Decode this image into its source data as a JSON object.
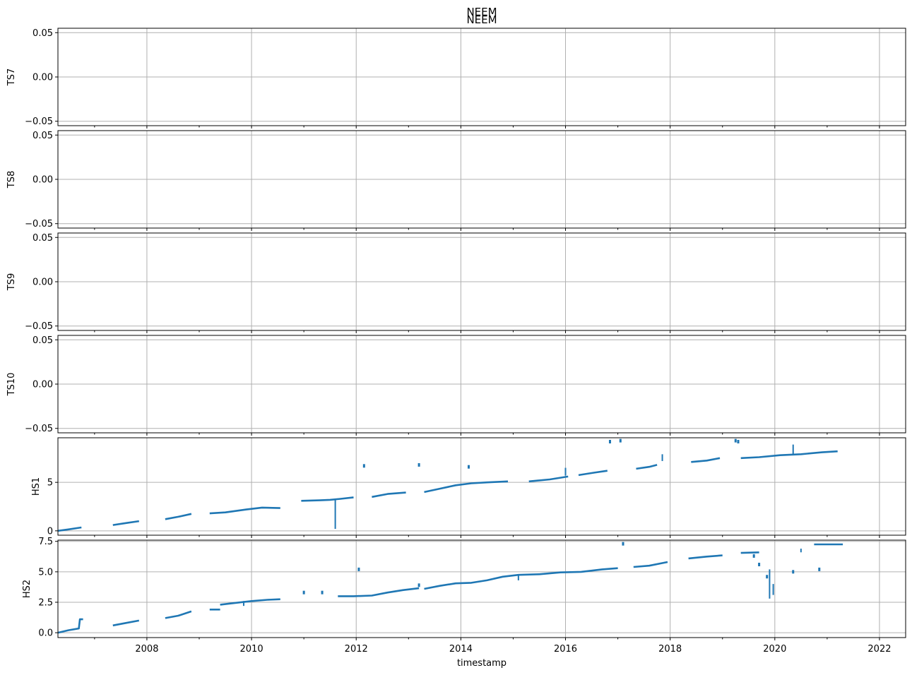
{
  "figure": {
    "titles": [
      "NEEM",
      "NEEM"
    ],
    "xlabel": "timestamp",
    "x_ticks": [
      "2008",
      "2010",
      "2012",
      "2014",
      "2016",
      "2018",
      "2020",
      "2022"
    ]
  },
  "chart_data": [
    {
      "type": "line",
      "ylabel": "TS7",
      "ylim": [
        -0.055,
        0.055
      ],
      "yticks": [
        -0.05,
        0.0,
        0.05
      ],
      "ytick_labels": [
        "−0.05",
        "0.00",
        "0.05"
      ],
      "grid": true,
      "series": []
    },
    {
      "type": "line",
      "ylabel": "TS8",
      "ylim": [
        -0.055,
        0.055
      ],
      "yticks": [
        -0.05,
        0.0,
        0.05
      ],
      "ytick_labels": [
        "−0.05",
        "0.00",
        "0.05"
      ],
      "grid": true,
      "series": []
    },
    {
      "type": "line",
      "ylabel": "TS9",
      "ylim": [
        -0.055,
        0.055
      ],
      "yticks": [
        -0.05,
        0.0,
        0.05
      ],
      "ytick_labels": [
        "−0.05",
        "0.00",
        "0.05"
      ],
      "grid": true,
      "series": []
    },
    {
      "type": "line",
      "ylabel": "TS10",
      "ylim": [
        -0.055,
        0.055
      ],
      "yticks": [
        -0.05,
        0.0,
        0.05
      ],
      "ytick_labels": [
        "−0.05",
        "0.00",
        "0.05"
      ],
      "grid": true,
      "series": []
    },
    {
      "type": "line",
      "ylabel": "HS1",
      "ylim": [
        -0.45,
        9.6
      ],
      "yticks": [
        0,
        5
      ],
      "ytick_labels": [
        "0",
        "5"
      ],
      "grid": true,
      "color": "#1f77b4",
      "series": [
        {
          "segments": [
            [
              [
                2006.3,
                0.0
              ],
              [
                2006.5,
                0.15
              ],
              [
                2006.75,
                0.35
              ]
            ],
            [
              [
                2007.35,
                0.6
              ],
              [
                2007.6,
                0.8
              ],
              [
                2007.85,
                1.0
              ]
            ],
            [
              [
                2008.35,
                1.2
              ],
              [
                2008.6,
                1.45
              ],
              [
                2008.85,
                1.75
              ]
            ],
            [
              [
                2009.2,
                1.8
              ],
              [
                2009.5,
                1.9
              ],
              [
                2009.9,
                2.2
              ],
              [
                2010.2,
                2.4
              ],
              [
                2010.55,
                2.35
              ]
            ],
            [
              [
                2010.95,
                3.1
              ],
              [
                2011.3,
                3.15
              ],
              [
                2011.5,
                3.2
              ],
              [
                2011.7,
                3.3
              ],
              [
                2011.95,
                3.45
              ]
            ],
            [
              [
                2012.3,
                3.5
              ],
              [
                2012.6,
                3.8
              ],
              [
                2012.95,
                3.95
              ]
            ],
            [
              [
                2013.3,
                4.0
              ],
              [
                2013.6,
                4.35
              ],
              [
                2013.9,
                4.7
              ],
              [
                2014.2,
                4.9
              ],
              [
                2014.5,
                5.0
              ],
              [
                2014.9,
                5.1
              ]
            ],
            [
              [
                2015.3,
                5.1
              ],
              [
                2015.7,
                5.3
              ],
              [
                2016.05,
                5.6
              ]
            ],
            [
              [
                2016.25,
                5.75
              ],
              [
                2016.55,
                6.0
              ],
              [
                2016.8,
                6.2
              ]
            ],
            [
              [
                2017.35,
                6.4
              ],
              [
                2017.6,
                6.6
              ],
              [
                2017.75,
                6.8
              ]
            ],
            [
              [
                2018.4,
                7.1
              ],
              [
                2018.7,
                7.25
              ],
              [
                2018.95,
                7.5
              ]
            ],
            [
              [
                2019.35,
                7.5
              ],
              [
                2019.7,
                7.6
              ],
              [
                2020.1,
                7.8
              ],
              [
                2020.5,
                7.9
              ],
              [
                2020.9,
                8.1
              ],
              [
                2021.2,
                8.2
              ]
            ]
          ]
        }
      ],
      "spikes": [
        [
          2011.6,
          3.3,
          0.2
        ],
        [
          2016.0,
          5.7,
          6.5
        ],
        [
          2017.85,
          7.2,
          7.9
        ],
        [
          2020.35,
          7.9,
          8.9
        ]
      ],
      "dots": [
        [
          2012.15,
          6.7
        ],
        [
          2013.2,
          6.8
        ],
        [
          2014.15,
          6.6
        ],
        [
          2016.85,
          9.2
        ],
        [
          2017.05,
          9.3
        ],
        [
          2019.25,
          9.3
        ],
        [
          2019.3,
          9.2
        ]
      ]
    },
    {
      "type": "line",
      "ylabel": "HS2",
      "ylim": [
        -0.4,
        7.6
      ],
      "yticks": [
        0.0,
        2.5,
        5.0,
        7.5
      ],
      "ytick_labels": [
        "0.0",
        "2.5",
        "5.0",
        "7.5"
      ],
      "grid": true,
      "color": "#1f77b4",
      "series": [
        {
          "segments": [
            [
              [
                2006.3,
                0.0
              ],
              [
                2006.5,
                0.2
              ],
              [
                2006.7,
                0.35
              ],
              [
                2006.72,
                1.1
              ],
              [
                2006.78,
                1.1
              ]
            ],
            [
              [
                2007.35,
                0.6
              ],
              [
                2007.6,
                0.8
              ],
              [
                2007.85,
                1.0
              ]
            ],
            [
              [
                2008.35,
                1.2
              ],
              [
                2008.6,
                1.4
              ],
              [
                2008.85,
                1.75
              ]
            ],
            [
              [
                2009.2,
                1.9
              ],
              [
                2009.4,
                1.9
              ]
            ],
            [
              [
                2009.4,
                2.3
              ],
              [
                2009.7,
                2.45
              ],
              [
                2010.0,
                2.6
              ],
              [
                2010.3,
                2.7
              ],
              [
                2010.55,
                2.75
              ]
            ],
            [
              [
                2011.65,
                3.0
              ],
              [
                2011.95,
                3.0
              ],
              [
                2012.3,
                3.05
              ],
              [
                2012.6,
                3.3
              ],
              [
                2012.9,
                3.5
              ],
              [
                2013.2,
                3.65
              ]
            ],
            [
              [
                2013.3,
                3.6
              ],
              [
                2013.6,
                3.85
              ],
              [
                2013.9,
                4.05
              ],
              [
                2014.2,
                4.1
              ],
              [
                2014.5,
                4.3
              ],
              [
                2014.8,
                4.6
              ],
              [
                2015.1,
                4.75
              ],
              [
                2015.5,
                4.8
              ],
              [
                2015.9,
                4.95
              ],
              [
                2016.3,
                5.0
              ],
              [
                2016.7,
                5.2
              ],
              [
                2017.0,
                5.3
              ]
            ],
            [
              [
                2017.3,
                5.4
              ],
              [
                2017.6,
                5.5
              ],
              [
                2017.95,
                5.8
              ]
            ],
            [
              [
                2018.35,
                6.1
              ],
              [
                2018.7,
                6.25
              ],
              [
                2019.0,
                6.35
              ]
            ],
            [
              [
                2019.35,
                6.55
              ],
              [
                2019.7,
                6.6
              ]
            ],
            [
              [
                2020.75,
                7.25
              ],
              [
                2021.3,
                7.25
              ]
            ]
          ]
        }
      ],
      "spikes": [
        [
          2009.85,
          2.6,
          2.2
        ],
        [
          2015.1,
          4.8,
          4.3
        ],
        [
          2019.9,
          5.2,
          2.8
        ],
        [
          2019.97,
          4.0,
          3.1
        ],
        [
          2020.5,
          6.9,
          6.6
        ]
      ],
      "dots": [
        [
          2011.0,
          3.3
        ],
        [
          2011.35,
          3.3
        ],
        [
          2012.05,
          5.2
        ],
        [
          2013.2,
          3.9
        ],
        [
          2017.1,
          7.3
        ],
        [
          2019.6,
          6.3
        ],
        [
          2019.7,
          5.6
        ],
        [
          2019.85,
          4.6
        ],
        [
          2020.35,
          5.0
        ],
        [
          2020.85,
          5.2
        ]
      ]
    }
  ]
}
